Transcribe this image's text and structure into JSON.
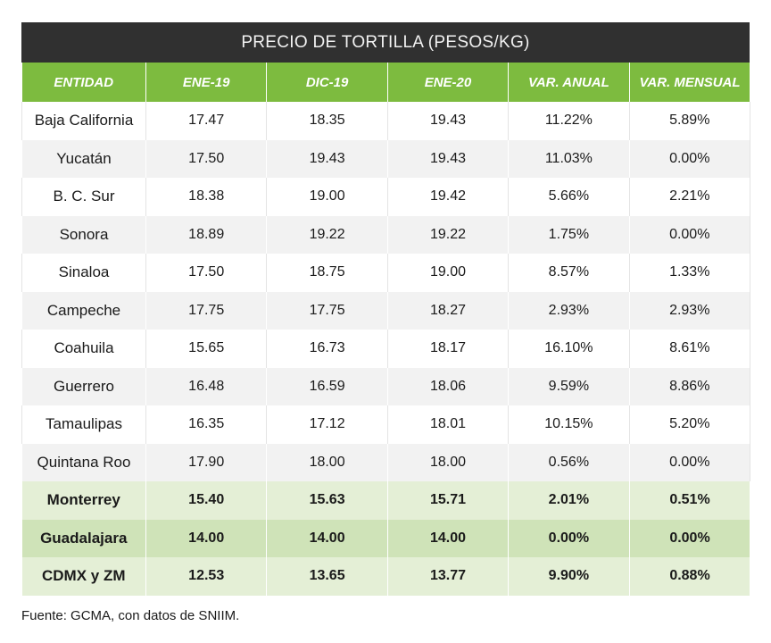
{
  "title": "PRECIO DE TORTILLA (PESOS/KG)",
  "columns": [
    "ENTIDAD",
    "ENE-19",
    "DIC-19",
    "ENE-20",
    "VAR. ANUAL",
    "VAR. MENSUAL"
  ],
  "rows": [
    [
      "Baja California",
      "17.47",
      "18.35",
      "19.43",
      "11.22%",
      "5.89%"
    ],
    [
      "Yucatán",
      "17.50",
      "19.43",
      "19.43",
      "11.03%",
      "0.00%"
    ],
    [
      "B. C. Sur",
      "18.38",
      "19.00",
      "19.42",
      "5.66%",
      "2.21%"
    ],
    [
      "Sonora",
      "18.89",
      "19.22",
      "19.22",
      "1.75%",
      "0.00%"
    ],
    [
      "Sinaloa",
      "17.50",
      "18.75",
      "19.00",
      "8.57%",
      "1.33%"
    ],
    [
      "Campeche",
      "17.75",
      "17.75",
      "18.27",
      "2.93%",
      "2.93%"
    ],
    [
      "Coahuila",
      "15.65",
      "16.73",
      "18.17",
      "16.10%",
      "8.61%"
    ],
    [
      "Guerrero",
      "16.48",
      "16.59",
      "18.06",
      "9.59%",
      "8.86%"
    ],
    [
      "Tamaulipas",
      "16.35",
      "17.12",
      "18.01",
      "10.15%",
      "5.20%"
    ],
    [
      "Quintana Roo",
      "17.90",
      "18.00",
      "18.00",
      "0.56%",
      "0.00%"
    ],
    [
      "Monterrey",
      "15.40",
      "15.63",
      "15.71",
      "2.01%",
      "0.51%"
    ],
    [
      "Guadalajara",
      "14.00",
      "14.00",
      "14.00",
      "0.00%",
      "0.00%"
    ],
    [
      "CDMX y ZM",
      "12.53",
      "13.65",
      "13.77",
      "9.90%",
      "0.88%"
    ]
  ],
  "source": "Fuente: GCMA, con datos de SNIIM.",
  "colors": {
    "title_bg": "#303030",
    "header_bg": "#7dbb3f",
    "row_alt": "#f2f2f2",
    "highlight_light": "#e4efd6",
    "highlight_mid": "#cfe3b8"
  }
}
